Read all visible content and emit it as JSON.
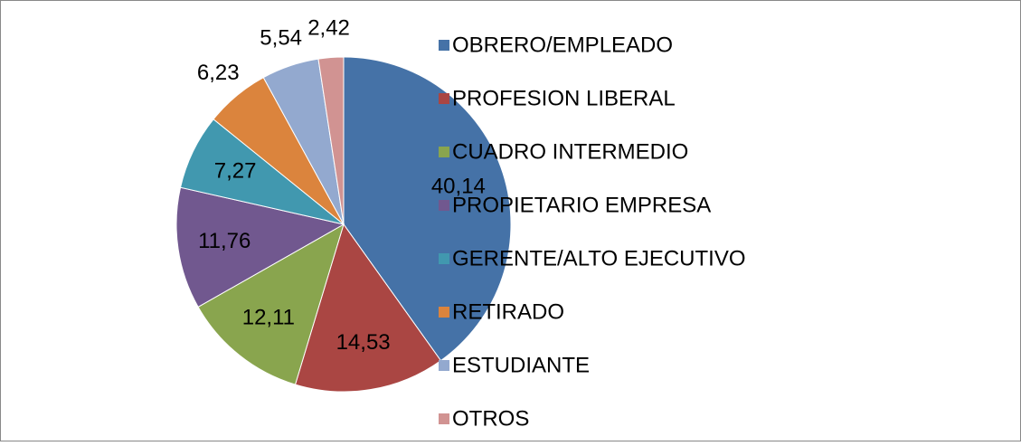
{
  "chart_data": {
    "type": "pie",
    "categories": [
      "OBRERO/EMPLEADO",
      "PROFESION LIBERAL",
      "CUADRO INTERMEDIO",
      "PROPIETARIO EMPRESA",
      "GERENTE/ALTO EJECUTIVO",
      "RETIRADO",
      "ESTUDIANTE",
      "OTROS"
    ],
    "values": [
      40.14,
      14.53,
      12.11,
      11.76,
      7.27,
      6.23,
      5.54,
      2.42
    ],
    "value_labels": [
      "40,14",
      "14,53",
      "12,11",
      "11,76",
      "7,27",
      "6,23",
      "5,54",
      "2,42"
    ],
    "colors": [
      "#4572A7",
      "#AA4643",
      "#89A54E",
      "#71588F",
      "#4198AF",
      "#DB843D",
      "#93A9CF",
      "#D19392"
    ],
    "legend": "right"
  }
}
